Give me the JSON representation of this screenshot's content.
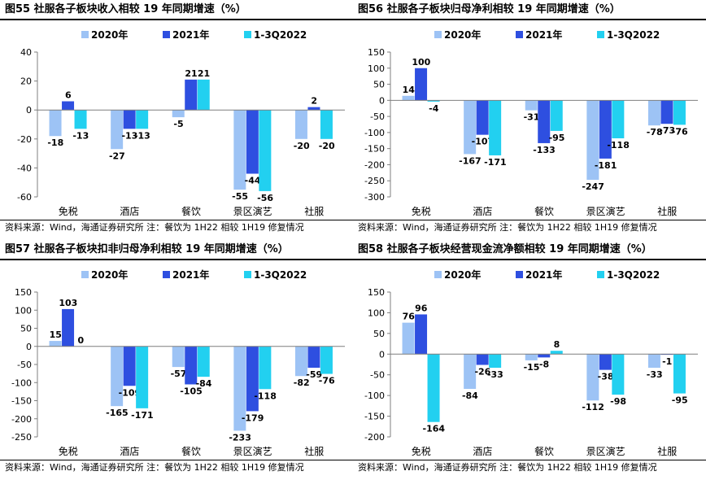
{
  "colors": {
    "s2020": "#9DC3F5",
    "s2021": "#2E4FE0",
    "s2022": "#22D0F0",
    "axis": "#7f7f7f"
  },
  "legend": [
    "2020年",
    "2021年",
    "1-3Q2022"
  ],
  "source_text": "资料来源：Wind，海通证券研究所    注：餐饮为 1H22 相较 1H19 修复情况",
  "charts": [
    {
      "title": "图55 社服各子板块收入相较 19 年同期增速（%）",
      "chart_data": {
        "type": "bar",
        "categories": [
          "免税",
          "酒店",
          "餐饮",
          "景区演艺",
          "社服"
        ],
        "series": [
          {
            "name": "2020年",
            "values": [
              -18,
              -27,
              -5,
              -55,
              -20
            ]
          },
          {
            "name": "2021年",
            "values": [
              6,
              -13,
              21,
              -44,
              2
            ]
          },
          {
            "name": "1-3Q2022",
            "values": [
              -13,
              -13,
              21,
              -56,
              -20
            ]
          }
        ],
        "ylim": [
          -60,
          40
        ],
        "yticks": [
          -60,
          -40,
          -20,
          0,
          20,
          40
        ]
      }
    },
    {
      "title": "图56 社服各子板块归母净利相较 19 年同期增速（%）",
      "chart_data": {
        "type": "bar",
        "categories": [
          "免税",
          "酒店",
          "餐饮",
          "景区演艺",
          "社服"
        ],
        "series": [
          {
            "name": "2020年",
            "values": [
              14,
              -167,
              -31,
              -247,
              -78
            ]
          },
          {
            "name": "2021年",
            "values": [
              100,
              -107,
              -133,
              -181,
              -73
            ]
          },
          {
            "name": "1-3Q2022",
            "values": [
              -4,
              -171,
              -95,
              -118,
              -76
            ]
          }
        ],
        "ylim": [
          -300,
          150
        ],
        "yticks": [
          -300,
          -250,
          -200,
          -150,
          -100,
          -50,
          0,
          50,
          100,
          150
        ]
      }
    },
    {
      "title": "图57 社服各子板块扣非归母净利相较 19 年同期增速（%）",
      "chart_data": {
        "type": "bar",
        "categories": [
          "免税",
          "酒店",
          "餐饮",
          "景区演艺",
          "社服"
        ],
        "series": [
          {
            "name": "2020年",
            "values": [
              15,
              -165,
              -57,
              -233,
              -82
            ]
          },
          {
            "name": "2021年",
            "values": [
              103,
              -109,
              -105,
              -179,
              -59
            ]
          },
          {
            "name": "1-3Q2022",
            "values": [
              0,
              -171,
              -84,
              -118,
              -76
            ]
          }
        ],
        "ylim": [
          -250,
          150
        ],
        "yticks": [
          -250,
          -200,
          -150,
          -100,
          -50,
          0,
          50,
          100,
          150
        ]
      }
    },
    {
      "title": "图58 社服各子板块经营现金流净额相较 19 年同期增速（%）",
      "chart_data": {
        "type": "bar",
        "categories": [
          "免税",
          "酒店",
          "餐饮",
          "景区演艺",
          "社服"
        ],
        "series": [
          {
            "name": "2020年",
            "values": [
              76,
              -84,
              -15,
              -112,
              -33
            ]
          },
          {
            "name": "2021年",
            "values": [
              96,
              -26,
              -8,
              -38,
              -1
            ]
          },
          {
            "name": "1-3Q2022",
            "values": [
              -164,
              -33,
              8,
              -98,
              -95
            ]
          }
        ],
        "ylim": [
          -200,
          150
        ],
        "yticks": [
          -200,
          -150,
          -100,
          -50,
          0,
          50,
          100,
          150
        ]
      }
    }
  ]
}
